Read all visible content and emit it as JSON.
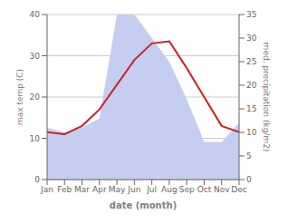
{
  "chart_data": {
    "type": "line",
    "categories": [
      "Jan",
      "Feb",
      "Mar",
      "Apr",
      "May",
      "Jun",
      "Jul",
      "Aug",
      "Sep",
      "Oct",
      "Nov",
      "Dec"
    ],
    "series": [
      {
        "type": "area",
        "color": "#c5cef0",
        "axis": "y2",
        "values": [
          11.0,
          10.0,
          11.0,
          13.0,
          35.0,
          35.0,
          30.0,
          25.0,
          17.0,
          8.0,
          8.0,
          12.0
        ]
      },
      {
        "type": "line",
        "color": "#cc2222",
        "values": [
          11.5,
          11.0,
          13.0,
          17.0,
          23.0,
          29.0,
          33.0,
          33.5,
          27.0,
          20.0,
          13.0,
          11.5
        ]
      }
    ],
    "xlabel": "date (month)",
    "ylabel": "max temp (C)",
    "y2label": "med. precipitation (kg/m2)",
    "ylim": [
      0,
      40
    ],
    "yticks": [
      0,
      10,
      20,
      30,
      40
    ],
    "y2lim": [
      0,
      35
    ],
    "y2ticks": [
      0,
      5,
      10,
      15,
      20,
      25,
      30,
      35
    ],
    "grid": true
  }
}
